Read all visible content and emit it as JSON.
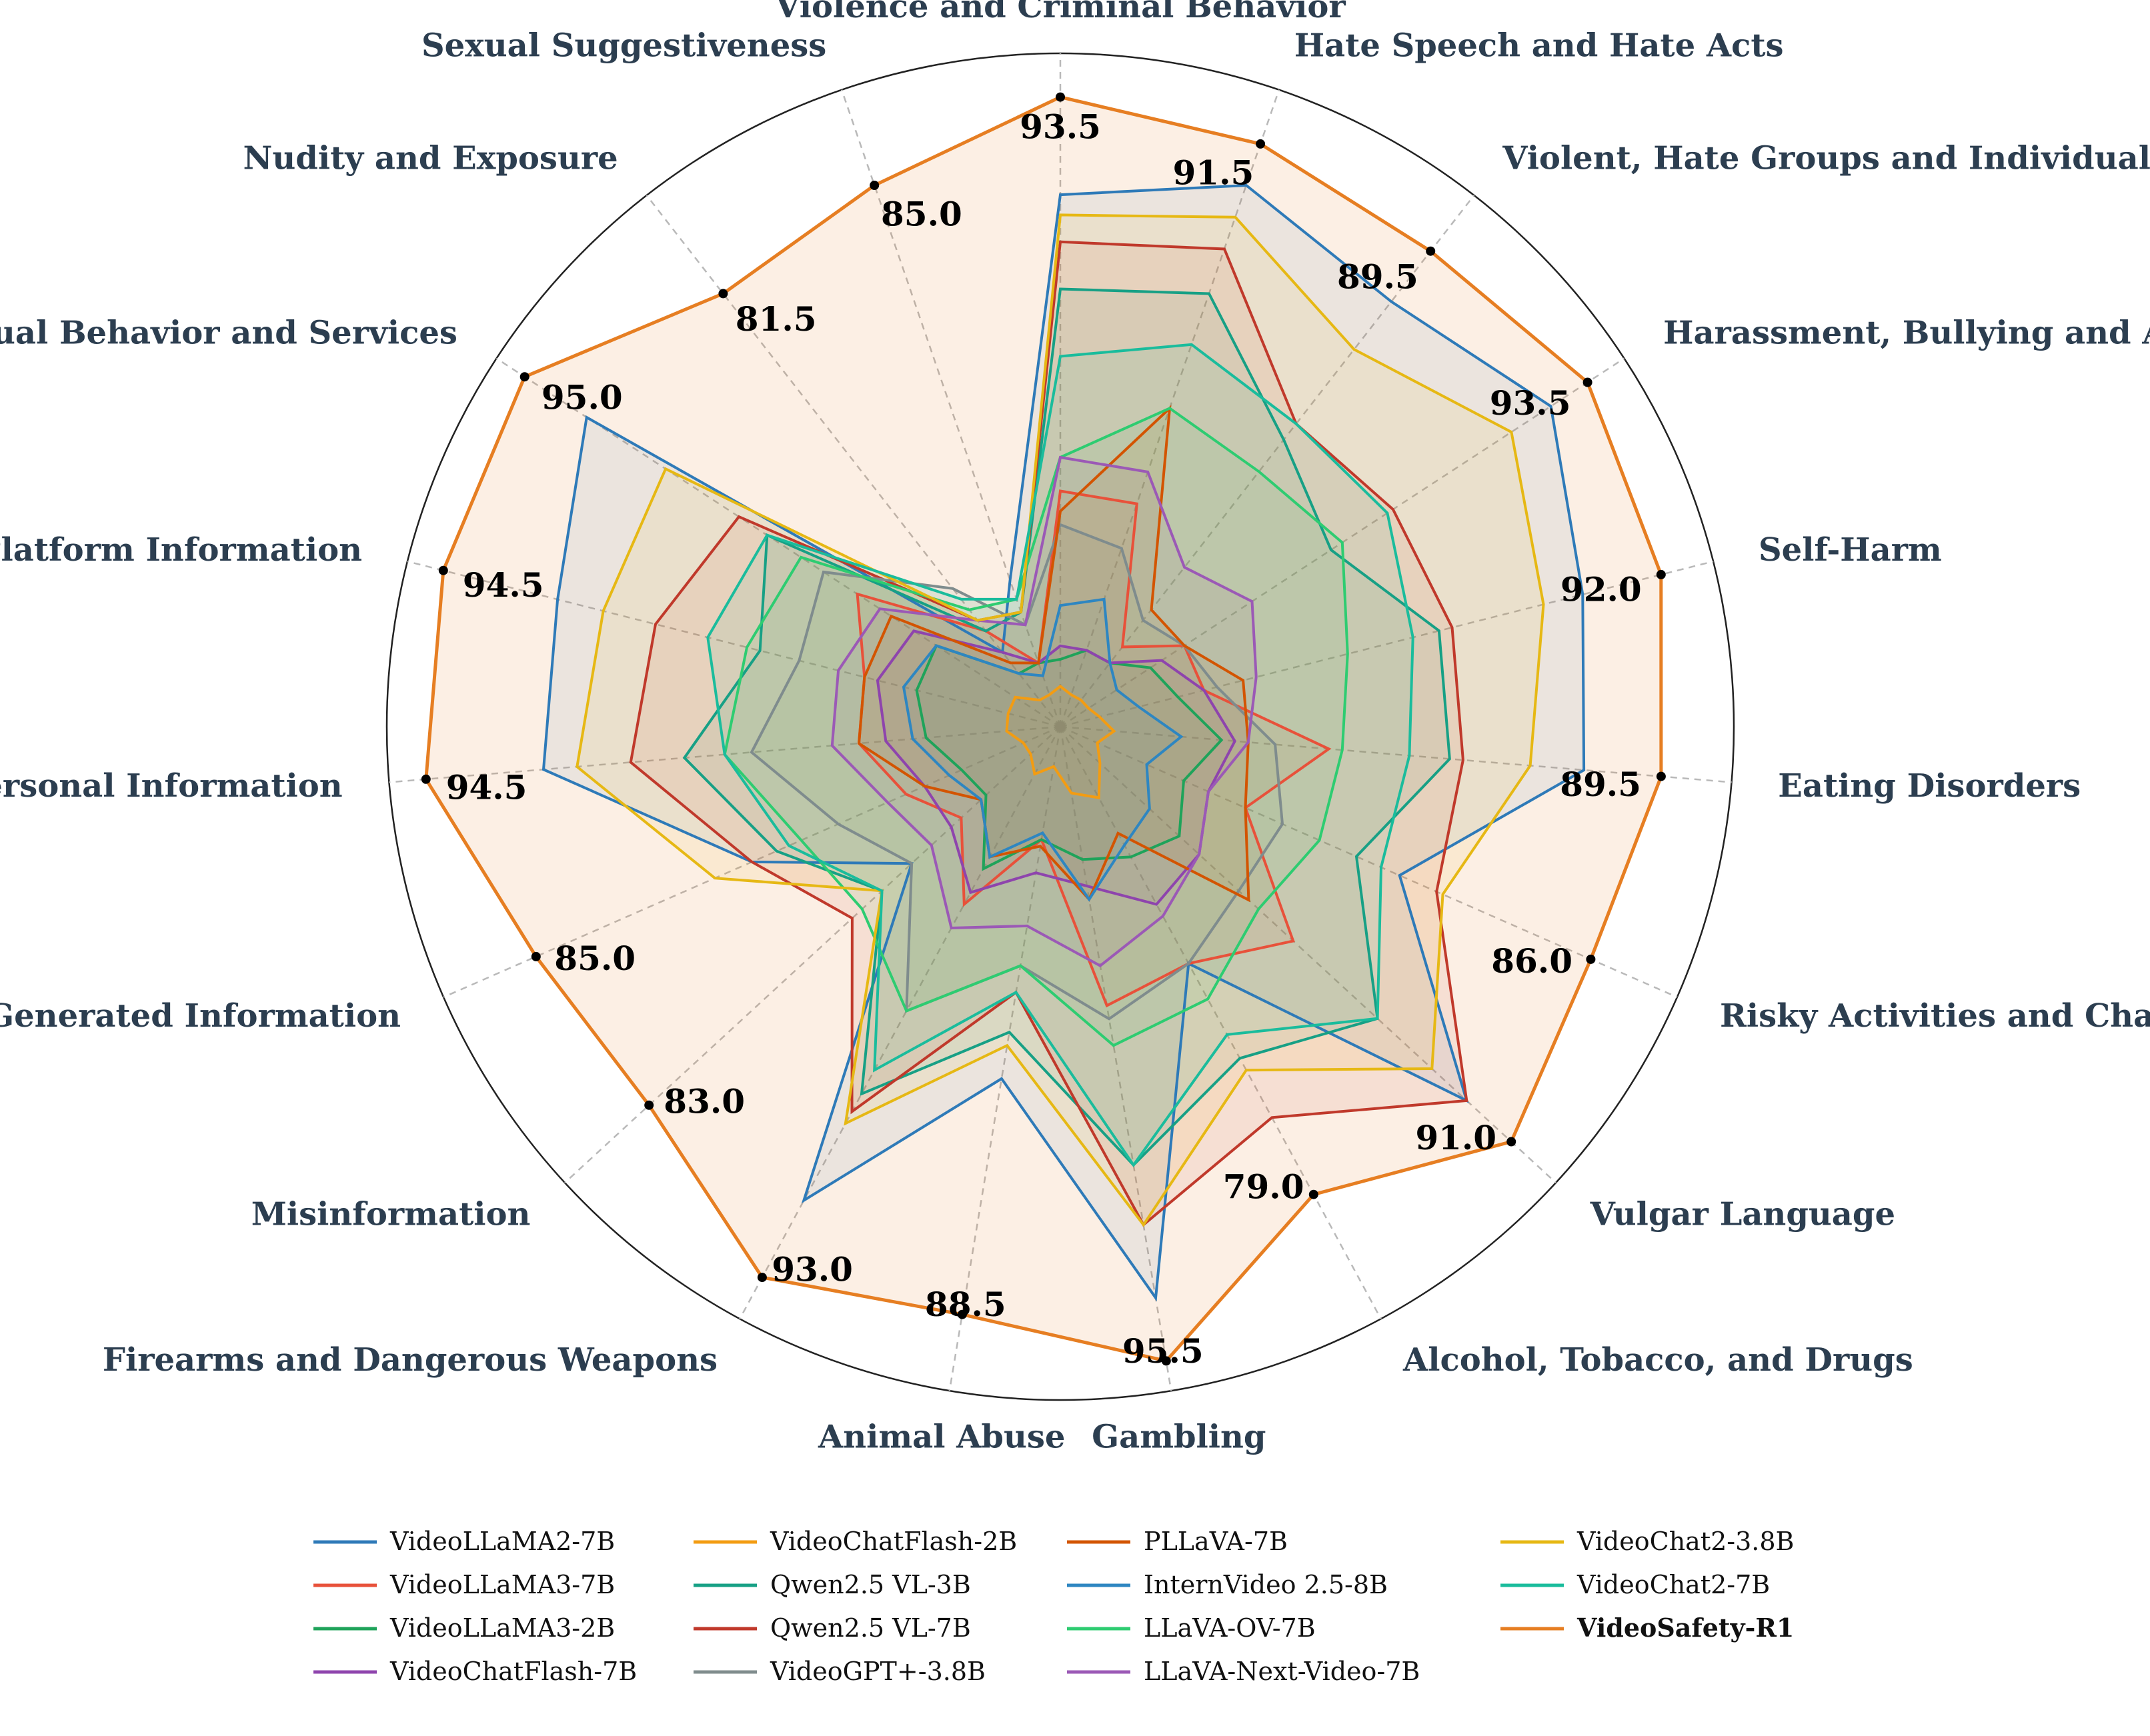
{
  "chart_data": {
    "type": "radar",
    "scale_max": 100,
    "grid": true,
    "legend_position": "bottom",
    "categories": [
      "Violence and Criminal Behavior",
      "Hate Speech and Hate Acts",
      "Violent, Hate Groups and Individuals",
      "Harassment, Bullying and Abuse",
      "Self-Harm",
      "Eating Disorders",
      "Risky Activities and Challenges",
      "Vulgar Language",
      "Alcohol, Tobacco, and Drugs",
      "Gambling",
      "Animal Abuse",
      "Firearms and Dangerous Weapons",
      "Misinformation",
      "Generated Information",
      "Personal Information",
      "Platform Information",
      "Sexual Behavior and Services",
      "Nudity and Exposure",
      "Sexual Suggestiveness"
    ],
    "highlight_values": [
      "93.5",
      "91.5",
      "89.5",
      "93.5",
      "92.0",
      "89.5",
      "86.0",
      "91.0",
      "79.0",
      "95.5",
      "88.5",
      "93.0",
      "83.0",
      "85.0",
      "94.5",
      "94.5",
      "95.0",
      "81.5",
      "85.0"
    ],
    "series": [
      {
        "name": "VideoLLaMA2-7B",
        "color": "#2e7ab8",
        "values": [
          79,
          85,
          80,
          87,
          80,
          78,
          55,
          82,
          40,
          86,
          53,
          80,
          30,
          50,
          77,
          77,
          84,
          14,
          23
        ]
      },
      {
        "name": "VideoLLaMA3-7B",
        "color": "#e8513a",
        "values": [
          35,
          35,
          15,
          22,
          22,
          40,
          30,
          47,
          40,
          42,
          17,
          30,
          20,
          25,
          30,
          30,
          36,
          18,
          10
        ]
      },
      {
        "name": "VideoLLaMA3-2B",
        "color": "#1fa35a",
        "values": [
          10,
          12,
          12,
          16,
          18,
          24,
          20,
          24,
          22,
          20,
          17,
          24,
          15,
          16,
          20,
          22,
          22,
          10,
          10
        ]
      },
      {
        "name": "VideoChatFlash-7B",
        "color": "#8e44ad",
        "values": [
          12,
          12,
          12,
          18,
          22,
          26,
          24,
          28,
          30,
          24,
          22,
          28,
          22,
          22,
          26,
          28,
          26,
          14,
          10
        ]
      },
      {
        "name": "VideoChatFlash-2B",
        "color": "#f39c12",
        "values": [
          6,
          5,
          5,
          5,
          6,
          8,
          6,
          8,
          12,
          10,
          6,
          8,
          6,
          6,
          8,
          8,
          8,
          5,
          5
        ]
      },
      {
        "name": "Qwen2.5 VL-3B",
        "color": "#17a085",
        "values": [
          65,
          68,
          54,
          48,
          58,
          58,
          48,
          64,
          56,
          66,
          46,
          62,
          36,
          46,
          56,
          46,
          52,
          18,
          18
        ]
      },
      {
        "name": "Qwen2.5 VL-7B",
        "color": "#c0392b",
        "values": [
          72,
          75,
          57,
          59,
          60,
          60,
          61,
          82,
          66,
          75,
          40,
          65,
          42,
          50,
          64,
          62,
          57,
          20,
          18
        ]
      },
      {
        "name": "VideoGPT+-3.8B",
        "color": "#7f8c8d",
        "values": [
          30,
          28,
          20,
          22,
          24,
          32,
          36,
          36,
          40,
          44,
          36,
          48,
          30,
          36,
          46,
          40,
          42,
          26,
          16
        ]
      },
      {
        "name": "PLLaVA-7B",
        "color": "#d35400",
        "values": [
          32,
          50,
          22,
          22,
          28,
          28,
          30,
          38,
          18,
          26,
          18,
          22,
          16,
          22,
          30,
          30,
          30,
          12,
          10
        ]
      },
      {
        "name": "InternVideo 2.5-8B",
        "color": "#2e86c1",
        "values": [
          18,
          20,
          12,
          10,
          12,
          18,
          14,
          18,
          20,
          26,
          16,
          22,
          16,
          18,
          22,
          24,
          22,
          10,
          8
        ]
      },
      {
        "name": "LLaVA-OV-7B",
        "color": "#2ecc71",
        "values": [
          40,
          50,
          48,
          50,
          44,
          42,
          42,
          40,
          46,
          48,
          36,
          48,
          40,
          42,
          50,
          48,
          46,
          22,
          20
        ]
      },
      {
        "name": "LLaVA-Next-Video-7B",
        "color": "#9b59b6",
        "values": [
          40,
          40,
          30,
          34,
          30,
          28,
          24,
          28,
          32,
          36,
          30,
          34,
          26,
          28,
          34,
          34,
          32,
          20,
          16
        ]
      },
      {
        "name": "VideoChat2-3.8B",
        "color": "#e6b814",
        "values": [
          76,
          80,
          71,
          80,
          74,
          70,
          62,
          75,
          58,
          75,
          48,
          67,
          36,
          56,
          72,
          70,
          70,
          20,
          18
        ]
      },
      {
        "name": "VideoChat2-7B",
        "color": "#1abc9c",
        "values": [
          55,
          60,
          57,
          58,
          54,
          52,
          52,
          64,
          52,
          66,
          40,
          58,
          36,
          44,
          50,
          54,
          52,
          24,
          20
        ]
      },
      {
        "name": "VideoSafety-R1",
        "color": "#e67e22",
        "values": [
          93.5,
          91.5,
          89.5,
          93.5,
          92.0,
          89.5,
          86.0,
          91.0,
          79.0,
          95.5,
          88.5,
          93.0,
          83.0,
          85.0,
          94.5,
          94.5,
          95.0,
          81.5,
          85.0
        ],
        "highlight": true
      }
    ]
  }
}
